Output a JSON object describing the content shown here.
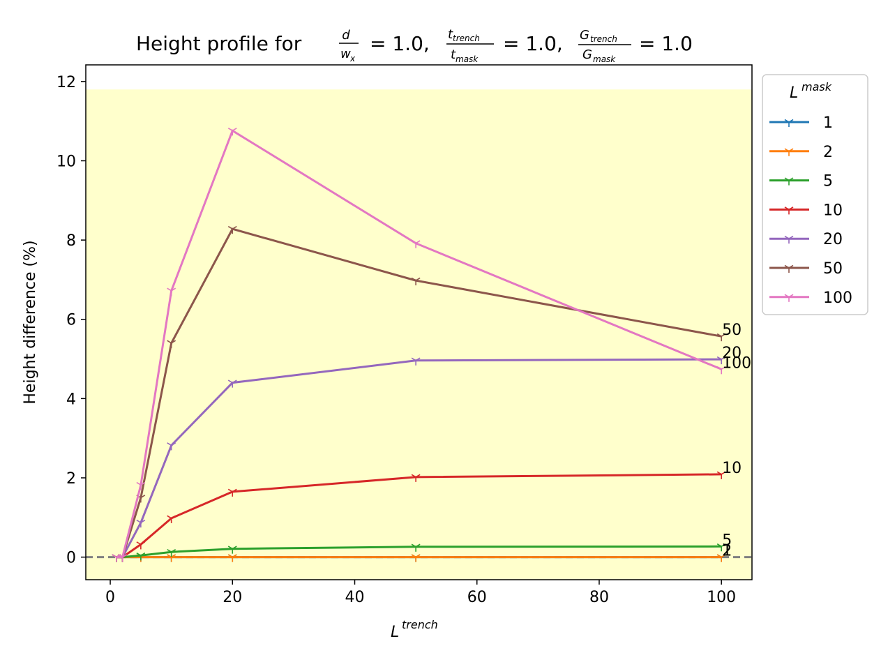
{
  "chart_data": {
    "type": "line",
    "title": "Height profile for d/w_x = 1.0, t_trench/t_mask = 1.0, G_trench/G_mask = 1.0",
    "title_parts": {
      "prefix": "Height profile for",
      "frac1_num": "d",
      "frac1_den": "w",
      "frac1_den_sub": "x",
      "frac2_num": "t",
      "frac2_num_sub": "trench",
      "frac2_den": "t",
      "frac2_den_sub": "mask",
      "frac3_num": "G",
      "frac3_num_sub": "trench",
      "frac3_den": "G",
      "frac3_den_sub": "mask",
      "eq1": "= 1.0,",
      "eq2": "= 1.0,",
      "eq3": "= 1.0"
    },
    "xlabel": "L",
    "xlabel_sup": "trench",
    "ylabel": "Height difference (%)",
    "xlim": [
      -4,
      105
    ],
    "ylim": [
      -0.57,
      12.42
    ],
    "xticks": [
      0,
      20,
      40,
      60,
      80,
      100
    ],
    "yticks": [
      0,
      2,
      4,
      6,
      8,
      10,
      12
    ],
    "grid": false,
    "shaded_region": {
      "y0": -0.57,
      "y1": 11.8,
      "color": "#ffffcc"
    },
    "reference_line": {
      "y": 0,
      "color": "#808080",
      "style": "dashed"
    },
    "x": [
      1,
      2,
      5,
      10,
      20,
      50,
      100
    ],
    "legend": {
      "title": "L",
      "title_sup": "mask",
      "placement": "outside-right-top"
    },
    "series": [
      {
        "name": "1",
        "color": "#1f77b4",
        "values": [
          0,
          0,
          0,
          0,
          0,
          0,
          0
        ],
        "end_label": "1"
      },
      {
        "name": "2",
        "color": "#ff7f0e",
        "values": [
          0,
          0,
          0,
          0,
          0,
          0,
          0
        ],
        "end_label": "2"
      },
      {
        "name": "5",
        "color": "#2ca02c",
        "values": [
          0,
          0,
          0.04,
          0.13,
          0.21,
          0.26,
          0.27
        ],
        "end_label": "5"
      },
      {
        "name": "10",
        "color": "#d62728",
        "values": [
          0,
          0,
          0.32,
          0.98,
          1.65,
          2.02,
          2.09
        ],
        "end_label": "10"
      },
      {
        "name": "20",
        "color": "#9467bd",
        "values": [
          0,
          0,
          0.87,
          2.82,
          4.4,
          4.96,
          4.99
        ],
        "end_label": "20"
      },
      {
        "name": "50",
        "color": "#8c564b",
        "values": [
          0,
          0,
          1.5,
          5.4,
          8.28,
          6.98,
          5.57
        ],
        "end_label": "50"
      },
      {
        "name": "100",
        "color": "#e377c2",
        "values": [
          0,
          0,
          1.82,
          6.72,
          10.76,
          7.92,
          4.74
        ],
        "end_label": "100"
      }
    ]
  }
}
